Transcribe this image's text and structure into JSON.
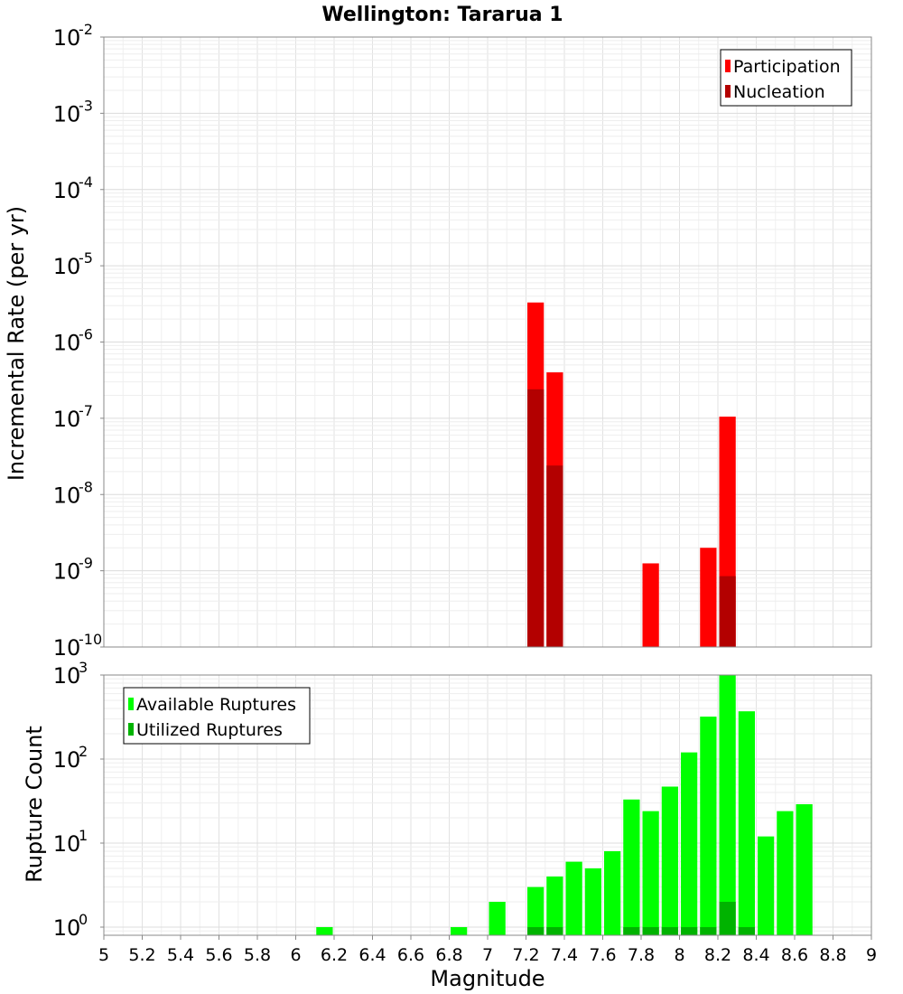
{
  "chart_data": [
    {
      "type": "bar",
      "title": "Wellington: Tararua 1",
      "xlabel": "Magnitude",
      "ylabel": "Incremental Rate (per yr)",
      "xlim": [
        5,
        9
      ],
      "ylim": [
        1e-10,
        0.01
      ],
      "yscale": "log",
      "grid": true,
      "legend_position": "top-right",
      "bin_width": 0.1,
      "series": [
        {
          "name": "Participation",
          "color": "#ff0000",
          "points": [
            {
              "x": 7.25,
              "y": 3.3e-06
            },
            {
              "x": 7.35,
              "y": 4e-07
            },
            {
              "x": 7.85,
              "y": 1.25e-09
            },
            {
              "x": 8.15,
              "y": 2e-09
            },
            {
              "x": 8.25,
              "y": 1.05e-07
            }
          ]
        },
        {
          "name": "Nucleation",
          "color": "#b30000",
          "points": [
            {
              "x": 7.25,
              "y": 2.4e-07
            },
            {
              "x": 7.35,
              "y": 2.4e-08
            },
            {
              "x": 8.25,
              "y": 8.5e-10
            }
          ]
        }
      ],
      "y_tick_exponents": [
        -10,
        -9,
        -8,
        -7,
        -6,
        -5,
        -4,
        -3,
        -2
      ]
    },
    {
      "type": "bar",
      "title": "",
      "xlabel": "Magnitude",
      "ylabel": "Rupture Count",
      "xlim": [
        5,
        9
      ],
      "ylim": [
        0.8,
        1000
      ],
      "yscale": "log",
      "grid": true,
      "legend_position": "top-left",
      "bin_width": 0.1,
      "x_tick_labels": [
        "5",
        "5.2",
        "5.4",
        "5.6",
        "5.8",
        "6",
        "6.2",
        "6.4",
        "6.6",
        "6.8",
        "7",
        "7.2",
        "7.4",
        "7.6",
        "7.8",
        "8",
        "8.2",
        "8.4",
        "8.6",
        "8.8",
        "9"
      ],
      "series": [
        {
          "name": "Available Ruptures",
          "color": "#00ff00",
          "points": [
            {
              "x": 6.15,
              "y": 1
            },
            {
              "x": 6.85,
              "y": 1
            },
            {
              "x": 7.05,
              "y": 2
            },
            {
              "x": 7.25,
              "y": 3
            },
            {
              "x": 7.35,
              "y": 4
            },
            {
              "x": 7.45,
              "y": 6
            },
            {
              "x": 7.55,
              "y": 5
            },
            {
              "x": 7.65,
              "y": 8
            },
            {
              "x": 7.75,
              "y": 33
            },
            {
              "x": 7.85,
              "y": 24
            },
            {
              "x": 7.95,
              "y": 47
            },
            {
              "x": 8.05,
              "y": 120
            },
            {
              "x": 8.15,
              "y": 320
            },
            {
              "x": 8.25,
              "y": 1000
            },
            {
              "x": 8.35,
              "y": 370
            },
            {
              "x": 8.45,
              "y": 12
            },
            {
              "x": 8.55,
              "y": 24
            },
            {
              "x": 8.65,
              "y": 29
            }
          ]
        },
        {
          "name": "Utilized Ruptures",
          "color": "#00b300",
          "points": [
            {
              "x": 7.25,
              "y": 1
            },
            {
              "x": 7.35,
              "y": 1
            },
            {
              "x": 7.75,
              "y": 1
            },
            {
              "x": 7.85,
              "y": 1
            },
            {
              "x": 7.95,
              "y": 1
            },
            {
              "x": 8.05,
              "y": 1
            },
            {
              "x": 8.15,
              "y": 1
            },
            {
              "x": 8.25,
              "y": 2
            },
            {
              "x": 8.35,
              "y": 1
            }
          ]
        }
      ],
      "y_tick_exponents": [
        0,
        1,
        2,
        3
      ]
    }
  ]
}
